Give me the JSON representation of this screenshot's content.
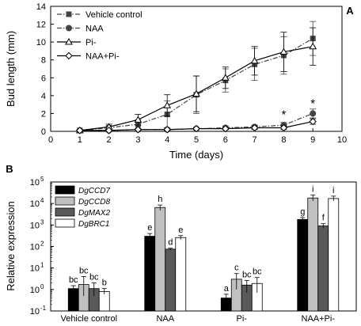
{
  "chart_data": [
    {
      "type": "line",
      "panel_label": "A",
      "xlabel": "Time (days)",
      "ylabel": "Bud length (mm)",
      "xlim": [
        0,
        10
      ],
      "ylim": [
        0,
        14
      ],
      "xticks": [
        0,
        1,
        2,
        3,
        4,
        5,
        6,
        7,
        8,
        9,
        10
      ],
      "yticks": [
        0,
        2,
        4,
        6,
        8,
        10,
        12,
        14
      ],
      "legend_position": "top-left",
      "annotations": [
        {
          "text": "*",
          "x": 8,
          "y": 0.75
        },
        {
          "text": "*",
          "x": 9,
          "y": 2.0
        }
      ],
      "series": [
        {
          "name": "Vehicle control",
          "marker": "square",
          "line": "dashdot",
          "color": "#444444",
          "x": [
            1,
            2,
            3,
            4,
            5,
            6,
            7,
            8,
            9
          ],
          "y": [
            0.1,
            0.4,
            0.8,
            1.9,
            4.1,
            5.7,
            7.5,
            8.5,
            10.4
          ],
          "err": [
            0.1,
            0.2,
            0.5,
            1.5,
            2.1,
            1.3,
            1.8,
            2.1,
            1.9
          ]
        },
        {
          "name": "NAA",
          "marker": "circle",
          "line": "dashdot",
          "color": "#444444",
          "x": [
            1,
            2,
            3,
            4,
            5,
            6,
            7,
            8,
            9
          ],
          "y": [
            0.1,
            0.1,
            0.2,
            0.2,
            0.3,
            0.4,
            0.5,
            0.7,
            2.0
          ],
          "err": [
            0.05,
            0.05,
            0.1,
            0.1,
            0.1,
            0.2,
            0.2,
            0.3,
            0.5
          ]
        },
        {
          "name": "Pi-",
          "marker": "triangle",
          "line": "solid",
          "color": "#000000",
          "x": [
            1,
            2,
            3,
            4,
            5,
            6,
            7,
            8,
            9
          ],
          "y": [
            0.1,
            0.5,
            1.3,
            2.9,
            4.2,
            6.0,
            7.9,
            8.9,
            9.5
          ],
          "err": [
            0.1,
            0.3,
            0.6,
            1.2,
            2.0,
            1.2,
            1.6,
            2.2,
            2.1
          ]
        },
        {
          "name": "NAA+Pi-",
          "marker": "diamond",
          "line": "solid",
          "color": "#000000",
          "x": [
            1,
            2,
            3,
            4,
            5,
            6,
            7,
            8,
            9
          ],
          "y": [
            0.1,
            0.1,
            0.2,
            0.2,
            0.3,
            0.3,
            0.4,
            0.4,
            1.1
          ],
          "err": [
            0.05,
            0.05,
            0.1,
            0.1,
            0.1,
            0.1,
            0.2,
            0.2,
            0.3
          ]
        }
      ]
    },
    {
      "type": "bar",
      "panel_label": "B",
      "ylabel": "Relative expression",
      "yscale": "log",
      "ylim": [
        0.1,
        100000
      ],
      "ytick_exponents": [
        -1,
        0,
        1,
        2,
        3,
        4,
        5
      ],
      "ytick_base": "10",
      "categories": [
        "Vehicle control",
        "NAA",
        "Pi-",
        "NAA+Pi-"
      ],
      "legend_position": "top-left",
      "series": [
        {
          "name": "DgCCD7",
          "color": "#000000",
          "values": [
            1.1,
            300,
            0.4,
            1800
          ],
          "err_low": [
            0.3,
            80,
            0.15,
            300
          ],
          "err_high": [
            0.4,
            100,
            0.2,
            400
          ],
          "letters": [
            "bc",
            "e",
            "a",
            "g"
          ]
        },
        {
          "name": "DgCCD8",
          "color": "#c0c0c0",
          "values": [
            1.7,
            6500,
            3.0,
            18000
          ],
          "err_low": [
            1.2,
            1800,
            2.0,
            5000
          ],
          "err_high": [
            2.3,
            2000,
            2.5,
            7000
          ],
          "letters": [
            "bc",
            "h",
            "c",
            "i"
          ]
        },
        {
          "name": "DgMAX2",
          "color": "#5a5a5a",
          "values": [
            1.1,
            75,
            1.6,
            900
          ],
          "err_low": [
            0.6,
            8,
            0.9,
            200
          ],
          "err_high": [
            0.9,
            8,
            1.0,
            250
          ],
          "letters": [
            "bc",
            "d",
            "bc",
            "f"
          ]
        },
        {
          "name": "DgBRC1",
          "color": "#ffffff",
          "values": [
            0.8,
            260,
            1.9,
            17000
          ],
          "err_low": [
            0.2,
            50,
            1.2,
            4000
          ],
          "err_high": [
            0.3,
            60,
            1.7,
            5000
          ],
          "letters": [
            "b",
            "e",
            "bc",
            "i"
          ]
        }
      ]
    }
  ]
}
